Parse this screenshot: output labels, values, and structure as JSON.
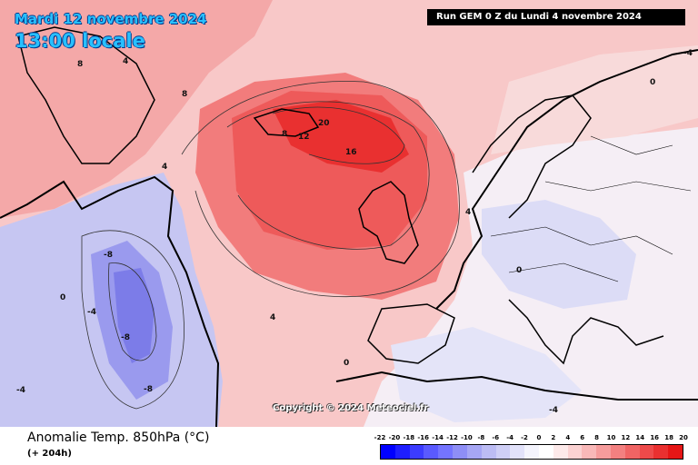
{
  "header": {
    "date": "Mardi 12 novembre 2024",
    "time": "13:00 locale",
    "run": "Run GEM 0 Z du Lundi 4 novembre 2024"
  },
  "map": {
    "copyright": "Copyright © 2024 Meteociel.fr",
    "contour_labels": [
      "20",
      "16",
      "12",
      "8",
      "4",
      "0",
      "-4",
      "-8"
    ]
  },
  "footer": {
    "variable": "Anomalie Temp. 850hPa (°C)",
    "lead": "(+ 204h)"
  },
  "legend": {
    "ticks": [
      "-22",
      "-20",
      "-18",
      "-16",
      "-14",
      "-12",
      "-10",
      "-8",
      "-6",
      "-4",
      "-2",
      "0",
      "2",
      "4",
      "6",
      "8",
      "10",
      "12",
      "14",
      "16",
      "18",
      "20"
    ],
    "colors": [
      "#0000ff",
      "#1e1eff",
      "#3c3cff",
      "#5a5aff",
      "#7474ff",
      "#8e8ef6",
      "#a6a6f4",
      "#bcbcf4",
      "#cfcff6",
      "#e2e2fa",
      "#f4f4fd",
      "#ffffff",
      "#fdeaea",
      "#fbd2d2",
      "#f9b8b8",
      "#f69c9c",
      "#f38080",
      "#f06464",
      "#ee4a4a",
      "#ea3030",
      "#e61616"
    ]
  }
}
